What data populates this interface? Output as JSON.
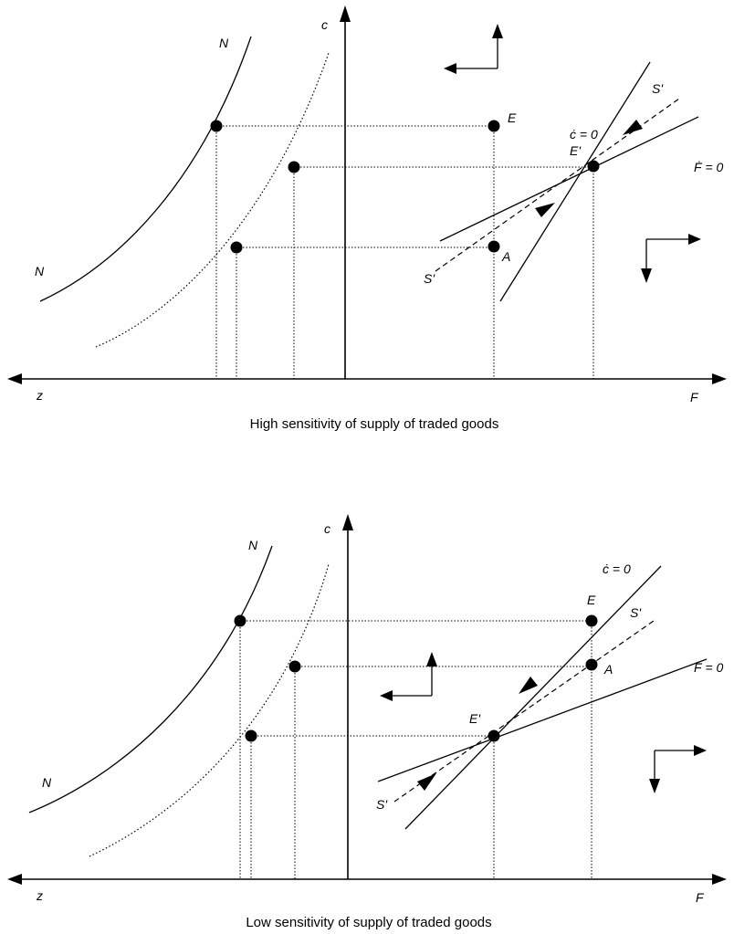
{
  "top": {
    "axis_c": "c",
    "axis_z": "z",
    "axis_F": "F",
    "curve_N_upper": "N",
    "curve_N_lower": "N",
    "point_E": "E",
    "point_E_prime": "E'",
    "point_A": "A",
    "label_S_upper": "S'",
    "label_S_lower": "S'",
    "locus_cdot": "ċ = 0",
    "locus_Fdot": "Ḟ = 0",
    "caption": "High sensitivity of supply of traded goods"
  },
  "bottom": {
    "axis_c": "c",
    "axis_z": "z",
    "axis_F": "F",
    "curve_N_upper": "N",
    "curve_N_lower": "N",
    "point_E": "E",
    "point_E_prime": "E'",
    "point_A": "A",
    "label_S_upper": "S'",
    "label_S_lower": "S'",
    "locus_cdot": "ċ = 0",
    "locus_Fdot": "Ḟ = 0",
    "caption": "Low sensitivity of supply of traded goods"
  }
}
